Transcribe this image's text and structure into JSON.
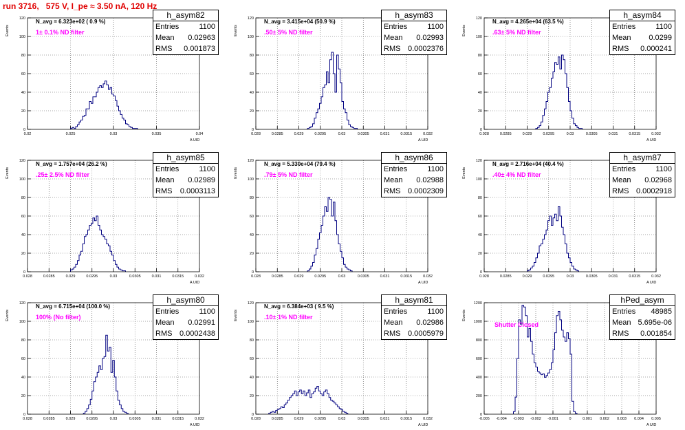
{
  "header": {
    "title": "run 3716,   575 V, I_pe ≈ 3.50 nA, 120 Hz"
  },
  "chart_data": [
    {
      "type": "bar",
      "name": "h_asym82",
      "stats": {
        "entries": "1100",
        "mean": "0.02963",
        "rms": "0.001873"
      },
      "n_avg": "N_avg = 6.323e+02 ( 0.9 %)",
      "filter": "1± 0.1% ND filter",
      "ylabel": "Events",
      "xlabel": "A_UID",
      "xlim": [
        0.02,
        0.04
      ],
      "ylim": [
        0,
        120
      ],
      "xticks": [
        "0.02",
        "0.025",
        "0.03",
        "0.035",
        "0.04"
      ],
      "yticks": [
        "0",
        "20",
        "40",
        "60",
        "80",
        "100",
        "120"
      ],
      "hist": {
        "xmin": 0.02,
        "xmax": 0.04,
        "nbins": 100,
        "start": 0.025,
        "values": [
          1,
          2,
          1,
          3,
          5,
          8,
          10,
          14,
          15,
          22,
          22,
          30,
          28,
          35,
          35,
          40,
          45,
          47,
          45,
          49,
          52,
          48,
          43,
          45,
          38,
          36,
          31,
          25,
          20,
          16,
          12,
          10,
          6,
          5,
          3,
          2,
          1,
          1,
          1
        ]
      }
    },
    {
      "type": "bar",
      "name": "h_asym83",
      "stats": {
        "entries": "1100",
        "mean": "0.02993",
        "rms": "0.0002376"
      },
      "n_avg": "N_avg = 3.415e+04 (50.9 %)",
      "filter": ".50± 5% ND filter",
      "ylabel": "Events",
      "xlabel": "A_UID",
      "xlim": [
        0.028,
        0.032
      ],
      "ylim": [
        0,
        120
      ],
      "xticks": [
        "0.028",
        "0.0285",
        "0.029",
        "0.0295",
        "0.03",
        "0.0305",
        "0.031",
        "0.0315",
        "0.032"
      ],
      "yticks": [
        "0",
        "20",
        "40",
        "60",
        "80",
        "100",
        "120"
      ],
      "hist": {
        "xmin": 0.028,
        "xmax": 0.032,
        "nbins": 100,
        "start": 0.0292,
        "values": [
          1,
          2,
          3,
          6,
          12,
          18,
          22,
          28,
          35,
          45,
          48,
          62,
          50,
          75,
          83,
          60,
          40,
          80,
          65,
          50,
          30,
          22,
          18,
          10,
          5,
          3,
          2,
          1,
          1
        ]
      }
    },
    {
      "type": "bar",
      "name": "h_asym84",
      "stats": {
        "entries": "1100",
        "mean": "0.0299",
        "rms": "0.000241"
      },
      "n_avg": "N_avg = 4.265e+04 (63.5 %)",
      "filter": ".63± 5% ND filter",
      "ylabel": "Events",
      "xlabel": "A_UID",
      "xlim": [
        0.028,
        0.032
      ],
      "ylim": [
        0,
        120
      ],
      "xticks": [
        "0.028",
        "0.0285",
        "0.029",
        "0.0295",
        "0.03",
        "0.0305",
        "0.031",
        "0.0315",
        "0.032"
      ],
      "yticks": [
        "0",
        "20",
        "40",
        "60",
        "80",
        "100",
        "120"
      ],
      "hist": {
        "xmin": 0.028,
        "xmax": 0.032,
        "nbins": 100,
        "start": 0.0292,
        "values": [
          1,
          2,
          4,
          8,
          15,
          22,
          30,
          40,
          45,
          55,
          62,
          72,
          70,
          78,
          65,
          80,
          75,
          60,
          45,
          30,
          20,
          12,
          6,
          4,
          2,
          1,
          1
        ]
      }
    },
    {
      "type": "bar",
      "name": "h_asym85",
      "stats": {
        "entries": "1100",
        "mean": "0.02989",
        "rms": "0.0003113"
      },
      "n_avg": "N_avg = 1.757e+04 (26.2 %)",
      "filter": ".25± 2.5% ND filter",
      "ylabel": "Events",
      "xlabel": "A_UID",
      "xlim": [
        0.028,
        0.032
      ],
      "ylim": [
        0,
        120
      ],
      "xticks": [
        "0.028",
        "0.0285",
        "0.029",
        "0.0295",
        "0.03",
        "0.0305",
        "0.031",
        "0.0315",
        "0.032"
      ],
      "yticks": [
        "0",
        "20",
        "40",
        "60",
        "80",
        "100",
        "120"
      ],
      "hist": {
        "xmin": 0.028,
        "xmax": 0.032,
        "nbins": 100,
        "start": 0.029,
        "values": [
          2,
          3,
          5,
          8,
          12,
          18,
          22,
          30,
          38,
          40,
          45,
          50,
          52,
          58,
          55,
          60,
          50,
          45,
          40,
          38,
          35,
          30,
          28,
          22,
          18,
          12,
          8,
          5,
          3,
          2,
          1,
          1
        ]
      }
    },
    {
      "type": "bar",
      "name": "h_asym86",
      "stats": {
        "entries": "1100",
        "mean": "0.02988",
        "rms": "0.0002309"
      },
      "n_avg": "N_avg = 5.330e+04 (79.4 %)",
      "filter": ".79± 5% ND filter",
      "ylabel": "Events",
      "xlabel": "A_UID",
      "xlim": [
        0.028,
        0.032
      ],
      "ylim": [
        0,
        120
      ],
      "xticks": [
        "0.028",
        "0.0285",
        "0.029",
        "0.0295",
        "0.03",
        "0.0305",
        "0.031",
        "0.0315",
        "0.032"
      ],
      "yticks": [
        "0",
        "20",
        "40",
        "60",
        "80",
        "100",
        "120"
      ],
      "hist": {
        "xmin": 0.028,
        "xmax": 0.032,
        "nbins": 100,
        "start": 0.0292,
        "values": [
          1,
          3,
          6,
          10,
          18,
          25,
          35,
          42,
          50,
          60,
          70,
          65,
          80,
          78,
          60,
          75,
          55,
          40,
          30,
          22,
          15,
          8,
          5,
          3,
          2,
          1
        ]
      }
    },
    {
      "type": "bar",
      "name": "h_asym87",
      "stats": {
        "entries": "1100",
        "mean": "0.02968",
        "rms": "0.0002918"
      },
      "n_avg": "N_avg = 2.716e+04 (40.4 %)",
      "filter": ".40± 4% ND filter",
      "ylabel": "Events",
      "xlabel": "A_UID",
      "xlim": [
        0.028,
        0.032
      ],
      "ylim": [
        0,
        120
      ],
      "xticks": [
        "0.028",
        "0.0285",
        "0.029",
        "0.0295",
        "0.03",
        "0.0305",
        "0.031",
        "0.0315",
        "0.032"
      ],
      "yticks": [
        "0",
        "20",
        "40",
        "60",
        "80",
        "100",
        "120"
      ],
      "hist": {
        "xmin": 0.028,
        "xmax": 0.032,
        "nbins": 100,
        "start": 0.029,
        "values": [
          1,
          2,
          4,
          6,
          10,
          15,
          20,
          28,
          30,
          35,
          40,
          45,
          55,
          60,
          50,
          58,
          62,
          55,
          70,
          60,
          48,
          40,
          30,
          20,
          15,
          10,
          6,
          3,
          2,
          1
        ]
      }
    },
    {
      "type": "bar",
      "name": "h_asym80",
      "stats": {
        "entries": "1100",
        "mean": "0.02991",
        "rms": "0.0002438"
      },
      "n_avg": "N_avg = 6.715e+04 (100.0 %)",
      "filter": "100% (No filter)",
      "ylabel": "Events",
      "xlabel": "A_UID",
      "xlim": [
        0.028,
        0.032
      ],
      "ylim": [
        0,
        120
      ],
      "xticks": [
        "0.028",
        "0.0285",
        "0.029",
        "0.0295",
        "0.03",
        "0.0305",
        "0.031",
        "0.0315",
        "0.032"
      ],
      "yticks": [
        "0",
        "20",
        "40",
        "60",
        "80",
        "100",
        "120"
      ],
      "hist": {
        "xmin": 0.028,
        "xmax": 0.032,
        "nbins": 100,
        "start": 0.0293,
        "values": [
          1,
          3,
          6,
          10,
          16,
          25,
          35,
          40,
          45,
          52,
          48,
          60,
          62,
          85,
          68,
          72,
          45,
          58,
          40,
          25,
          15,
          10,
          6,
          3,
          2,
          1
        ]
      }
    },
    {
      "type": "bar",
      "name": "h_asym81",
      "stats": {
        "entries": "1100",
        "mean": "0.02986",
        "rms": "0.0005979"
      },
      "n_avg": "N_avg = 6.384e+03 ( 9.5 %)",
      "filter": ".10± 1% ND filter",
      "ylabel": "Events",
      "xlabel": "A_UID",
      "xlim": [
        0.028,
        0.032
      ],
      "ylim": [
        0,
        120
      ],
      "xticks": [
        "0.028",
        "0.0285",
        "0.029",
        "0.0295",
        "0.03",
        "0.0305",
        "0.031",
        "0.0315",
        "0.032"
      ],
      "yticks": [
        "0",
        "20",
        "40",
        "60",
        "80",
        "100",
        "120"
      ],
      "hist": {
        "xmin": 0.028,
        "xmax": 0.032,
        "nbins": 100,
        "start": 0.0283,
        "values": [
          1,
          2,
          3,
          2,
          4,
          5,
          6,
          8,
          7,
          10,
          12,
          15,
          18,
          20,
          22,
          25,
          20,
          24,
          26,
          22,
          25,
          20,
          23,
          26,
          18,
          22,
          24,
          28,
          30,
          25,
          22,
          20,
          24,
          26,
          22,
          18,
          15,
          14,
          12,
          10,
          8,
          6,
          5,
          3,
          2,
          1
        ]
      }
    },
    {
      "type": "bar",
      "name": "hPed_asym",
      "stats": {
        "entries": "48985",
        "mean": "5.695e-06",
        "rms": "0.001854"
      },
      "annotation": "Shutter Closed",
      "ylabel": "Events",
      "xlabel": "A_UID",
      "xlim": [
        -0.005,
        0.005
      ],
      "ylim": [
        0,
        1300
      ],
      "xticks": [
        "-0.005",
        "-0.004",
        "-0.003",
        "-0.002",
        "-0.001",
        "0",
        "0.001",
        "0.002",
        "0.003",
        "0.004",
        "0.005"
      ],
      "yticks": [
        "0",
        "200",
        "400",
        "600",
        "800",
        "1000",
        "1200"
      ],
      "hist": {
        "xmin": -0.005,
        "xmax": 0.005,
        "nbins": 100,
        "start": -0.0033,
        "values": [
          30,
          200,
          650,
          1100,
          1050,
          1270,
          1250,
          1150,
          900,
          1000,
          850,
          700,
          600,
          550,
          500,
          480,
          460,
          470,
          430,
          450,
          480,
          520,
          600,
          750,
          950,
          1150,
          1200,
          1100,
          980,
          900,
          850,
          950,
          880,
          700,
          150,
          30,
          10
        ]
      }
    }
  ]
}
